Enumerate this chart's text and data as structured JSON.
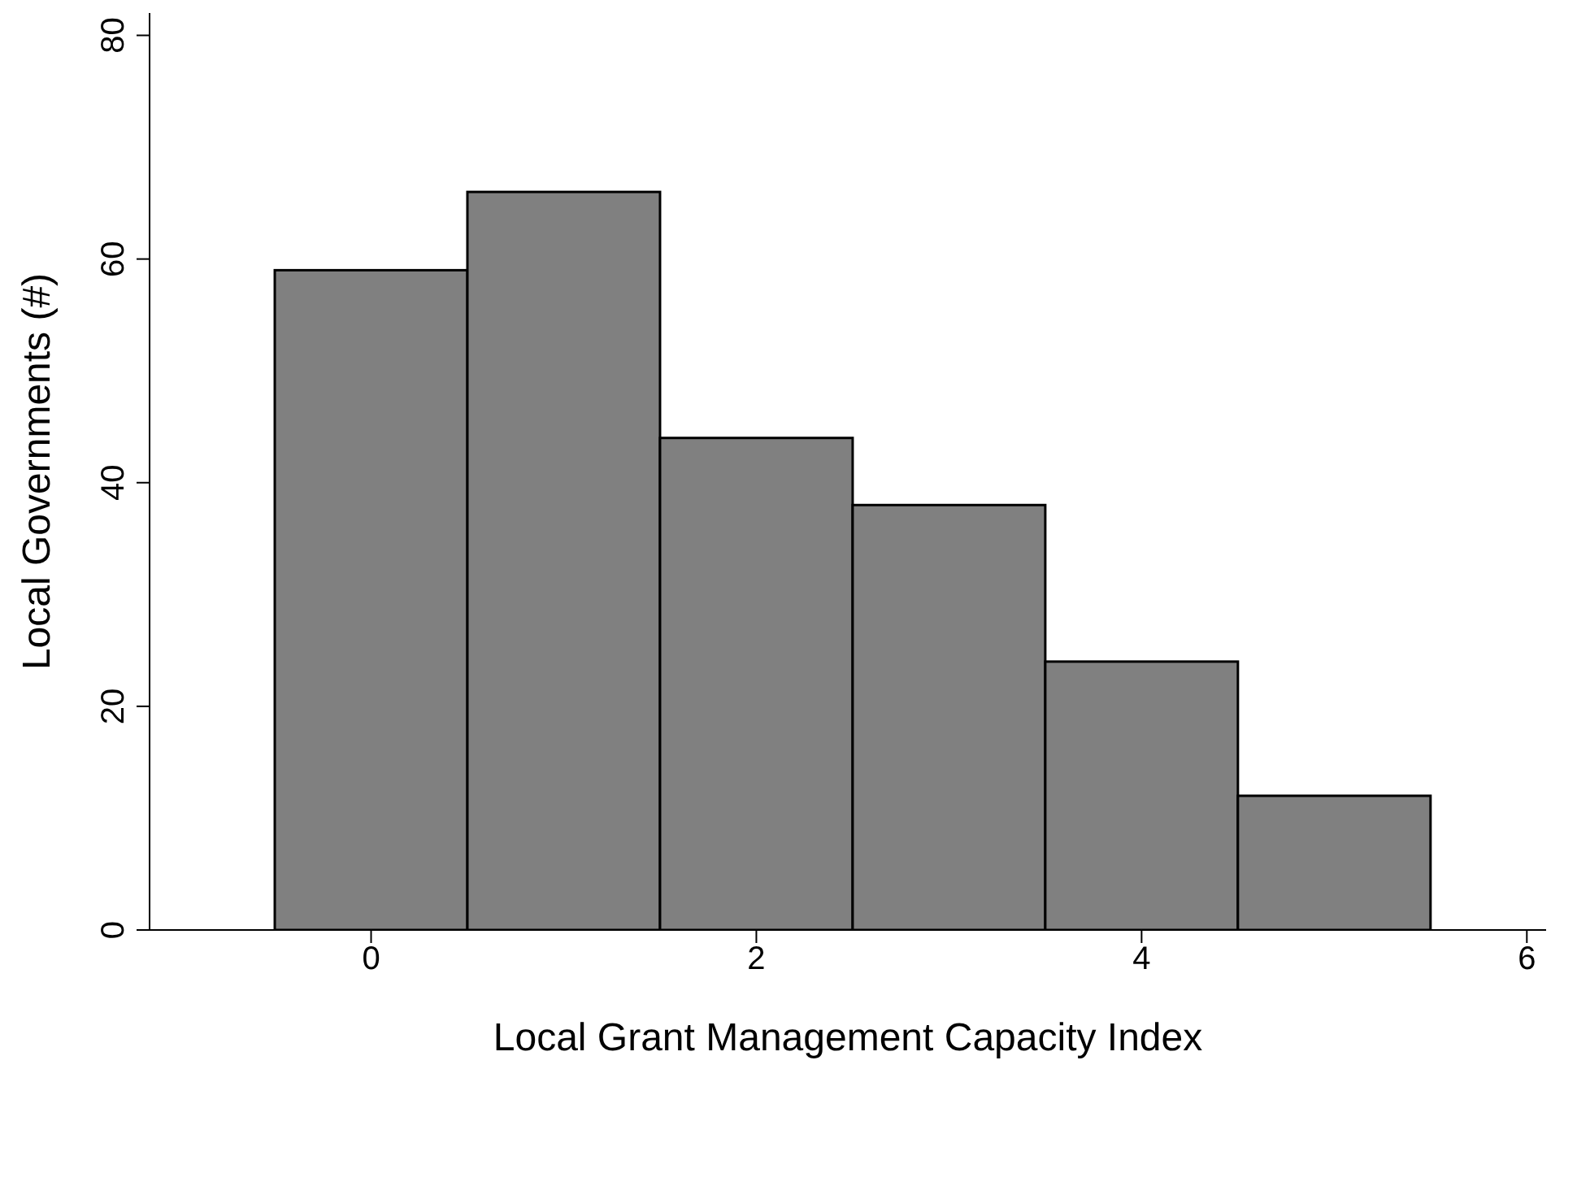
{
  "chart_data": {
    "type": "histogram",
    "xlabel": "Local Grant Management Capacity Index",
    "ylabel": "Local Governments (#)",
    "bins": [
      -0.5,
      0.5,
      1.5,
      2.5,
      3.5,
      4.5,
      5.5
    ],
    "values": [
      59,
      66,
      44,
      38,
      24,
      12
    ],
    "color": "#808080",
    "xlim": [
      -1.15,
      6.1
    ],
    "xticks": [
      0,
      2,
      4,
      6
    ],
    "ylim": [
      0,
      82
    ],
    "yticks": [
      0,
      20,
      40,
      60,
      80
    ],
    "grid": false,
    "legend": false
  }
}
